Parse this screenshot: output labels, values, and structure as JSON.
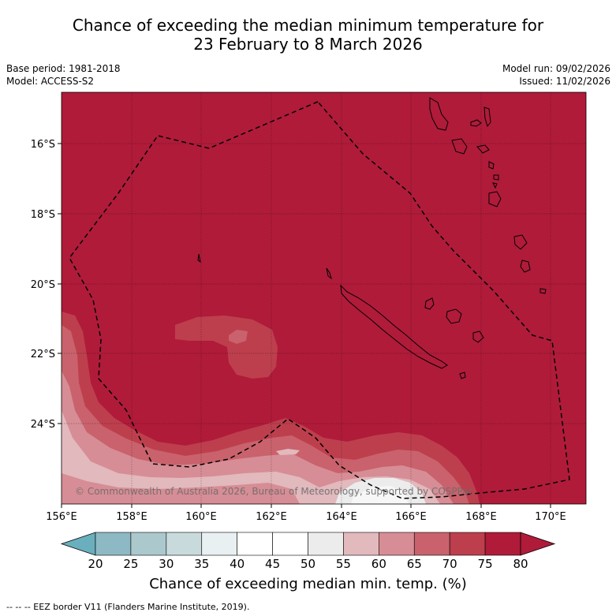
{
  "title": {
    "line1": "Chance of exceeding the median minimum temperature for",
    "line2": "23 February to 8 March 2026"
  },
  "meta": {
    "base_period": "Base period: 1981-2018",
    "model": "Model: ACCESS-S2",
    "model_run": "Model run: 09/02/2026",
    "issued": "Issued: 11/02/2026"
  },
  "map": {
    "lon_ticks": [
      "156°E",
      "158°E",
      "160°E",
      "162°E",
      "164°E",
      "166°E",
      "168°E",
      "170°E"
    ],
    "lat_ticks": [
      "16°S",
      "18°S",
      "20°S",
      "22°S",
      "24°S"
    ],
    "copyright": "© Commonwealth of Australia 2026, Bureau of Meteorology, supported by COSPPac"
  },
  "colorbar": {
    "ticks": [
      "20",
      "25",
      "30",
      "35",
      "40",
      "45",
      "50",
      "55",
      "60",
      "65",
      "70",
      "75",
      "80"
    ],
    "colors": [
      "#6aafbd",
      "#8db9c4",
      "#abc8cd",
      "#c8dadc",
      "#e9f0f1",
      "#ffffff",
      "#ffffff",
      "#ececec",
      "#e2b9bd",
      "#d78d95",
      "#c9626c",
      "#bd3f4d",
      "#b01b3a"
    ],
    "label": "Chance of exceeding median min. temp. (%)"
  },
  "footnote": "--  --  -- EEZ border V11 (Flanders Marine Institute, 2019)."
}
